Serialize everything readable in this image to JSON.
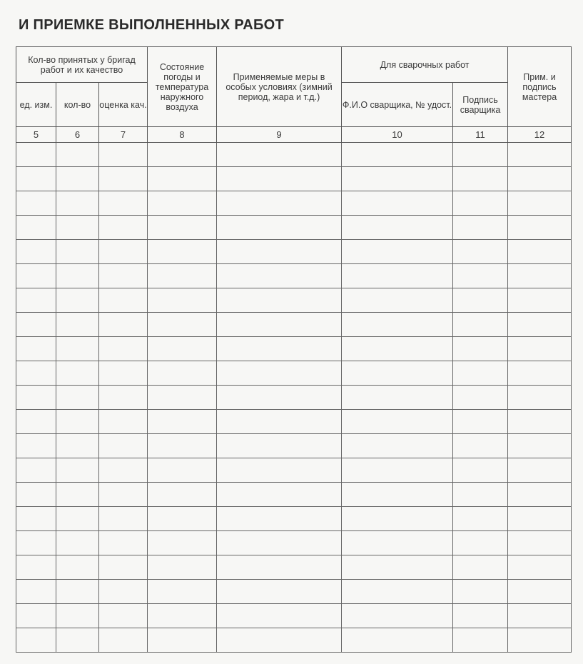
{
  "title": "И ПРИЕМКЕ ВЫПОЛНЕННЫХ РАБОТ",
  "header": {
    "group_accepted": "Кол-во принятых у бригад работ и их качество",
    "unit": "ед. изм.",
    "qty": "кол-во",
    "quality": "оценка кач.",
    "weather": "Состояние погоды и температура наружного воздуха",
    "measures": "Применяемые меры в особых условиях (зимний период, жара и т.д.)",
    "group_welding": "Для сварочных работ",
    "welder_name": "Ф.И.О сварщика, № удост.",
    "welder_signature": "Подпись сварщика",
    "master_note": "Прим. и подпись мастера"
  },
  "column_numbers": [
    "5",
    "6",
    "7",
    "8",
    "9",
    "10",
    "11",
    "12"
  ],
  "empty_rows": 21
}
